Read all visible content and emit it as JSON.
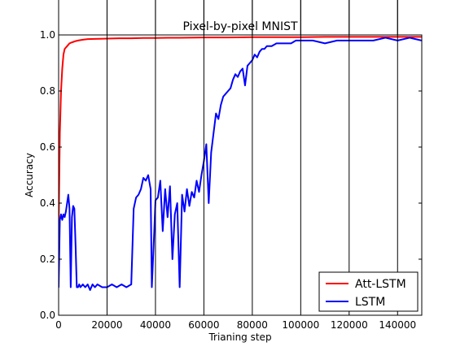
{
  "chart_data": {
    "type": "line",
    "title": "Pixel-by-pixel MNIST",
    "xlabel": "Trianing step",
    "ylabel": "Accuracy",
    "xlim": [
      0,
      150000
    ],
    "ylim": [
      0.0,
      1.0
    ],
    "x_ticks": [
      0,
      20000,
      40000,
      60000,
      80000,
      100000,
      120000,
      140000
    ],
    "x_tick_labels": [
      "0",
      "20000",
      "40000",
      "60000",
      "80000",
      "100000",
      "120000",
      "140000"
    ],
    "y_ticks": [
      0.0,
      0.2,
      0.4,
      0.6,
      0.8,
      1.0
    ],
    "y_tick_labels": [
      "0.0",
      "0.2",
      "0.4",
      "0.6",
      "0.8",
      "1.0"
    ],
    "grid": false,
    "legend_position": "lower-right",
    "series": [
      {
        "name": "Att-LSTM",
        "color": "#ff0000",
        "x": [
          0,
          500,
          1000,
          1500,
          2000,
          2500,
          3000,
          3500,
          4000,
          4500,
          5000,
          6000,
          7000,
          8000,
          10000,
          12000,
          15000,
          20000,
          25000,
          30000,
          35000,
          40000,
          45000,
          50000,
          60000,
          70000,
          80000,
          90000,
          100000,
          110000,
          120000,
          130000,
          140000,
          150000
        ],
        "values": [
          0.3,
          0.65,
          0.8,
          0.88,
          0.93,
          0.95,
          0.955,
          0.96,
          0.965,
          0.97,
          0.972,
          0.975,
          0.978,
          0.98,
          0.983,
          0.985,
          0.986,
          0.987,
          0.988,
          0.988,
          0.989,
          0.989,
          0.99,
          0.99,
          0.991,
          0.991,
          0.992,
          0.992,
          0.992,
          0.993,
          0.993,
          0.993,
          0.993,
          0.993
        ]
      },
      {
        "name": "LSTM",
        "color": "#0000ff",
        "x": [
          0,
          500,
          1000,
          1500,
          2000,
          2500,
          3000,
          3500,
          4000,
          4500,
          5000,
          5500,
          6000,
          6500,
          7000,
          7500,
          8000,
          8500,
          9000,
          10000,
          11000,
          12000,
          13000,
          14000,
          15000,
          16000,
          18000,
          20000,
          22000,
          24000,
          26000,
          28000,
          30000,
          31000,
          32000,
          33000,
          34000,
          35000,
          36000,
          37000,
          38000,
          38500,
          39000,
          39500,
          40000,
          41000,
          42000,
          43000,
          44000,
          45000,
          46000,
          47000,
          48000,
          49000,
          50000,
          51000,
          52000,
          53000,
          54000,
          55000,
          56000,
          57000,
          58000,
          59000,
          60000,
          61000,
          62000,
          63000,
          64000,
          65000,
          66000,
          67000,
          68000,
          69000,
          70000,
          71000,
          72000,
          73000,
          74000,
          75000,
          76000,
          77000,
          78000,
          79000,
          80000,
          81000,
          82000,
          83000,
          84000,
          85000,
          86000,
          88000,
          90000,
          92000,
          94000,
          96000,
          98000,
          100000,
          105000,
          110000,
          115000,
          120000,
          125000,
          130000,
          135000,
          140000,
          145000,
          150000
        ],
        "values": [
          0.1,
          0.34,
          0.36,
          0.34,
          0.36,
          0.35,
          0.37,
          0.4,
          0.43,
          0.38,
          0.1,
          0.35,
          0.39,
          0.38,
          0.25,
          0.1,
          0.1,
          0.11,
          0.1,
          0.11,
          0.1,
          0.11,
          0.09,
          0.11,
          0.1,
          0.11,
          0.1,
          0.1,
          0.11,
          0.1,
          0.11,
          0.1,
          0.11,
          0.38,
          0.42,
          0.43,
          0.45,
          0.49,
          0.48,
          0.5,
          0.45,
          0.1,
          0.2,
          0.3,
          0.41,
          0.42,
          0.48,
          0.3,
          0.45,
          0.35,
          0.46,
          0.2,
          0.36,
          0.4,
          0.1,
          0.43,
          0.37,
          0.45,
          0.39,
          0.44,
          0.42,
          0.48,
          0.44,
          0.5,
          0.55,
          0.61,
          0.4,
          0.58,
          0.65,
          0.72,
          0.7,
          0.75,
          0.78,
          0.79,
          0.8,
          0.81,
          0.84,
          0.86,
          0.85,
          0.87,
          0.88,
          0.82,
          0.89,
          0.9,
          0.91,
          0.93,
          0.92,
          0.94,
          0.95,
          0.95,
          0.96,
          0.96,
          0.97,
          0.97,
          0.97,
          0.97,
          0.98,
          0.98,
          0.98,
          0.97,
          0.98,
          0.98,
          0.98,
          0.98,
          0.99,
          0.98,
          0.99,
          0.98
        ]
      }
    ]
  }
}
